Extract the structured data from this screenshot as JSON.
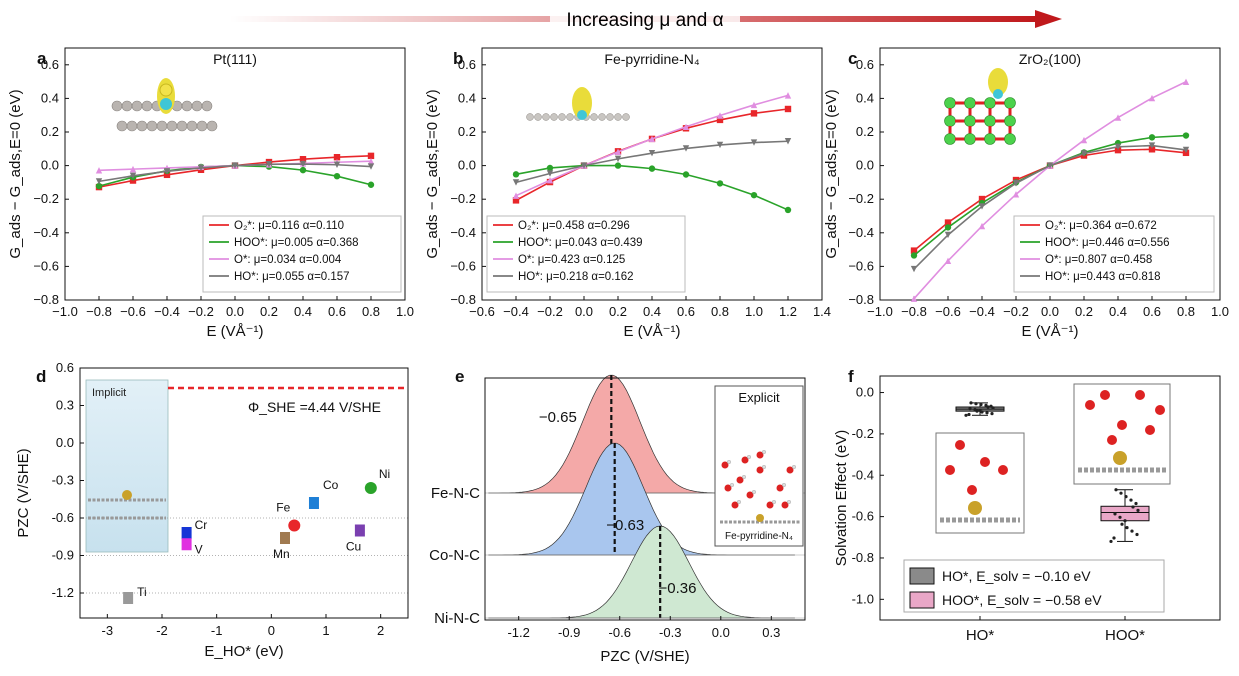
{
  "header": {
    "title": "Increasing μ and α"
  },
  "colors": {
    "red": "#e8262a",
    "green": "#2aa32a",
    "pink": "#e08ee0",
    "gray": "#777777",
    "fill_red": "#f4a9a8",
    "fill_blue": "#a9c6ee",
    "fill_green": "#cfe8d2",
    "box_gray": "#8a8a8a",
    "box_pink": "#e9a7c7"
  },
  "chart_data": [
    {
      "panel": "a",
      "type": "line",
      "title": "Pt(111)",
      "xlabel": "E (VÅ⁻¹)",
      "ylabel": "G_ads − G_ads,E=0 (eV)",
      "xlim": [
        -1.0,
        1.0
      ],
      "ylim": [
        -0.8,
        0.7
      ],
      "xticks": [
        "−1.0",
        "−0.8",
        "−0.6",
        "−0.4",
        "−0.2",
        "0.0",
        "0.2",
        "0.4",
        "0.6",
        "0.8",
        "1.0"
      ],
      "yticks": [
        "0.6",
        "0.4",
        "0.2",
        "0.0",
        "−0.2",
        "−0.4",
        "−0.6",
        "−0.8"
      ],
      "x": [
        -0.8,
        -0.6,
        -0.4,
        -0.2,
        0,
        0.2,
        0.4,
        0.6,
        0.8
      ],
      "series": [
        {
          "name": "O₂*: μ=0.116 α=0.110",
          "color": "red",
          "marker": "square",
          "values": [
            -0.128,
            -0.089,
            -0.055,
            -0.025,
            0,
            0.021,
            0.038,
            0.05,
            0.058
          ]
        },
        {
          "name": "HOO*: μ=0.005 α=0.368",
          "color": "green",
          "marker": "circle",
          "values": [
            -0.122,
            -0.069,
            -0.031,
            -0.008,
            0,
            -0.006,
            -0.027,
            -0.063,
            -0.114
          ]
        },
        {
          "name": "O*: μ=0.034 α=0.004",
          "color": "pink",
          "marker": "triangle-up",
          "values": [
            -0.028,
            -0.021,
            -0.014,
            -0.007,
            0,
            0.007,
            0.013,
            0.02,
            0.026
          ]
        },
        {
          "name": "HO*: μ=0.055 α=0.157",
          "color": "gray",
          "marker": "triangle-down",
          "values": [
            -0.094,
            -0.061,
            -0.034,
            -0.014,
            0,
            0.008,
            0.009,
            0.005,
            -0.006
          ]
        }
      ]
    },
    {
      "panel": "b",
      "type": "line",
      "title": "Fe-pyrridine-N₄",
      "xlabel": "E (VÅ⁻¹)",
      "ylabel": "G_ads − G_ads,E=0 (eV)",
      "xlim": [
        -0.6,
        1.4
      ],
      "ylim": [
        -0.8,
        0.7
      ],
      "xticks": [
        "−0.6",
        "−0.4",
        "−0.2",
        "0.0",
        "0.2",
        "0.4",
        "0.6",
        "0.8",
        "1.0",
        "1.2",
        "1.4"
      ],
      "yticks": [
        "0.6",
        "0.4",
        "0.2",
        "0.0",
        "−0.2",
        "−0.4",
        "−0.6",
        "−0.8"
      ],
      "x": [
        -0.4,
        -0.2,
        0,
        0.2,
        0.4,
        0.6,
        0.8,
        1.0,
        1.2
      ],
      "series": [
        {
          "name": "O₂*: μ=0.458 α=0.296",
          "color": "red",
          "marker": "square",
          "values": [
            -0.207,
            -0.098,
            0,
            0.085,
            0.159,
            0.222,
            0.272,
            0.311,
            0.337
          ]
        },
        {
          "name": "HOO*: μ=0.043 α=0.439",
          "color": "green",
          "marker": "circle",
          "values": [
            -0.052,
            -0.014,
            0,
            -0.0,
            -0.018,
            -0.053,
            -0.106,
            -0.176,
            -0.264
          ]
        },
        {
          "name": "O*: μ=0.423 α=0.125",
          "color": "pink",
          "marker": "triangle-up",
          "values": [
            -0.179,
            -0.087,
            0,
            0.082,
            0.159,
            0.231,
            0.298,
            0.361,
            0.418
          ]
        },
        {
          "name": "HO*: μ=0.218 α=0.162",
          "color": "gray",
          "marker": "triangle-down",
          "values": [
            -0.1,
            -0.047,
            0,
            0.04,
            0.074,
            0.102,
            0.123,
            0.137,
            0.145
          ]
        }
      ]
    },
    {
      "panel": "c",
      "type": "line",
      "title": "ZrO₂(100)",
      "xlabel": "E (VÅ⁻¹)",
      "ylabel": "G_ads − G_ads,E=0 (eV)",
      "xlim": [
        -1.0,
        1.0
      ],
      "ylim": [
        -0.8,
        0.7
      ],
      "xticks": [
        "−1.0",
        "−0.8",
        "−0.6",
        "−0.4",
        "−0.2",
        "0.0",
        "0.2",
        "0.4",
        "0.6",
        "0.8",
        "1.0"
      ],
      "yticks": [
        "0.6",
        "0.4",
        "0.2",
        "0.0",
        "−0.2",
        "−0.4",
        "−0.6",
        "−0.8"
      ],
      "x": [
        -0.8,
        -0.6,
        -0.4,
        -0.2,
        0,
        0.2,
        0.4,
        0.6,
        0.8
      ],
      "series": [
        {
          "name": "O₂*: μ=0.364 α=0.672",
          "color": "red",
          "marker": "square",
          "values": [
            -0.506,
            -0.339,
            -0.199,
            -0.086,
            0,
            0.06,
            0.092,
            0.097,
            0.076
          ]
        },
        {
          "name": "HOO*: μ=0.446 α=0.556",
          "color": "green",
          "marker": "circle",
          "values": [
            -0.535,
            -0.368,
            -0.223,
            -0.1,
            0,
            0.078,
            0.134,
            0.168,
            0.179
          ]
        },
        {
          "name": "O*: μ=0.807 α=0.458",
          "color": "pink",
          "marker": "triangle-up",
          "values": [
            -0.792,
            -0.567,
            -0.36,
            -0.171,
            0,
            0.152,
            0.286,
            0.402,
            0.499
          ]
        },
        {
          "name": "HO*: μ=0.443 α=0.818",
          "color": "gray",
          "marker": "triangle-down",
          "values": [
            -0.616,
            -0.413,
            -0.243,
            -0.105,
            0,
            0.072,
            0.112,
            0.119,
            0.093
          ]
        }
      ]
    },
    {
      "panel": "d",
      "type": "scatter",
      "xlabel": "E_HO* (eV)",
      "ylabel": "PZC (V/SHE)",
      "xlim": [
        -3.5,
        2.5
      ],
      "ylim": [
        -1.4,
        0.6
      ],
      "xticks": [
        "-3",
        "-2",
        "-1",
        "0",
        "1",
        "2"
      ],
      "yticks": [
        "0.6",
        "0.3",
        "0.0",
        "-0.3",
        "-0.6",
        "-0.9",
        "-1.2"
      ],
      "hline": {
        "y": 0.44,
        "label": "Φ_SHE =4.44 V/SHE"
      },
      "dotted_y": [
        -0.6,
        -0.9,
        -1.2
      ],
      "inset_label": "Implicit",
      "points": [
        {
          "label": "Ti",
          "x": -2.62,
          "y": -1.24,
          "color": "#999999",
          "shape": "square"
        },
        {
          "label": "Cr",
          "x": -1.55,
          "y": -0.72,
          "color": "#1535d6",
          "shape": "square"
        },
        {
          "label": "V",
          "x": -1.55,
          "y": -0.81,
          "color": "#e030e0",
          "shape": "square"
        },
        {
          "label": "Mn",
          "x": 0.25,
          "y": -0.76,
          "color": "#a07a50",
          "shape": "square"
        },
        {
          "label": "Fe",
          "x": 0.42,
          "y": -0.66,
          "color": "#e8262a",
          "shape": "circle"
        },
        {
          "label": "Co",
          "x": 0.78,
          "y": -0.48,
          "color": "#1e7fd6",
          "shape": "square"
        },
        {
          "label": "Cu",
          "x": 1.62,
          "y": -0.7,
          "color": "#7a3fb0",
          "shape": "square"
        },
        {
          "label": "Ni",
          "x": 1.82,
          "y": -0.36,
          "color": "#2aa32a",
          "shape": "circle"
        }
      ]
    },
    {
      "panel": "e",
      "type": "area",
      "xlabel": "PZC (V/SHE)",
      "xlim": [
        -1.4,
        0.5
      ],
      "xticks": [
        "-1.2",
        "-0.9",
        "-0.6",
        "-0.3",
        "0.0",
        "0.3"
      ],
      "inset_label": "Explicit",
      "inset_caption": "Fe-pyrridine-N₄",
      "series": [
        {
          "name": "Fe-N-C",
          "mean": -0.65,
          "label": "−0.65",
          "color": "fill_red"
        },
        {
          "name": "Co-N-C",
          "mean": -0.63,
          "label": "−0.63",
          "color": "fill_blue"
        },
        {
          "name": "Ni-N-C",
          "mean": -0.36,
          "label": "−0.36",
          "color": "fill_green"
        }
      ]
    },
    {
      "panel": "f",
      "type": "box",
      "ylabel": "Solvation Effect (eV)",
      "ylim": [
        -1.1,
        0.08
      ],
      "yticks": [
        "0.0",
        "-0.2",
        "-0.4",
        "-0.6",
        "-0.8",
        "-1.0"
      ],
      "categories": [
        "HO*",
        "HOO*"
      ],
      "boxes": [
        {
          "name": "HO*",
          "median": -0.08,
          "q1": -0.09,
          "q3": -0.07,
          "min": -0.11,
          "max": -0.05,
          "color": "box_gray"
        },
        {
          "name": "HOO*",
          "median": -0.58,
          "q1": -0.62,
          "q3": -0.55,
          "min": -0.72,
          "max": -0.47,
          "color": "box_pink"
        }
      ],
      "legend": [
        "HO*, E_solv = −0.10 eV",
        "HOO*, E_solv = −0.58 eV"
      ]
    }
  ]
}
